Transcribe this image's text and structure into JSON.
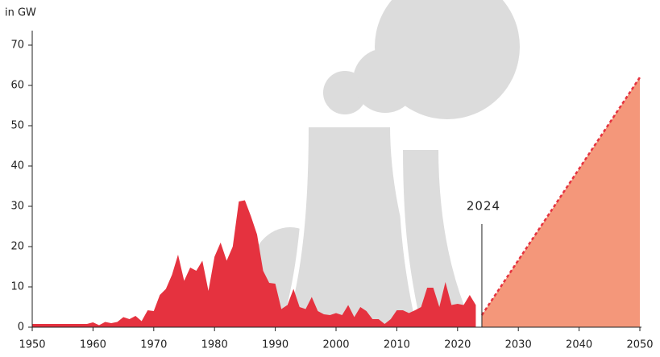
{
  "chart_data": {
    "type": "area",
    "y_label": "in GW",
    "annotation": 2024,
    "xlim": [
      1950,
      2050
    ],
    "xticks": [
      1950,
      1960,
      1970,
      1980,
      1990,
      2000,
      2010,
      2020,
      2030,
      2040,
      2050
    ],
    "ylim": [
      0,
      70
    ],
    "yticks": [
      0,
      10,
      20,
      30,
      40,
      50,
      60,
      70
    ],
    "series": [
      {
        "color": "#e5323f",
        "x": [
          1950,
          1951,
          1952,
          1953,
          1954,
          1955,
          1956,
          1957,
          1958,
          1959,
          1960,
          1961,
          1962,
          1963,
          1964,
          1965,
          1966,
          1967,
          1968,
          1969,
          1970,
          1971,
          1972,
          1973,
          1974,
          1975,
          1976,
          1977,
          1978,
          1979,
          1980,
          1981,
          1982,
          1983,
          1984,
          1985,
          1986,
          1987,
          1988,
          1989,
          1990,
          1991,
          1992,
          1993,
          1994,
          1995,
          1996,
          1997,
          1998,
          1999,
          2000,
          2001,
          2002,
          2003,
          2004,
          2005,
          2006,
          2007,
          2008,
          2009,
          2010,
          2011,
          2012,
          2013,
          2014,
          2015,
          2016,
          2017,
          2018,
          2019,
          2020,
          2021,
          2022,
          2023
        ],
        "values": [
          0.8,
          0.8,
          0.8,
          0.8,
          0.8,
          0.8,
          0.8,
          0.8,
          0.8,
          0.8,
          1.2,
          0.5,
          1.3,
          1,
          1.3,
          2.5,
          2,
          2.8,
          1.5,
          4.2,
          4,
          8,
          9.5,
          13,
          18,
          11.5,
          14.8,
          14,
          16.5,
          9,
          17.5,
          21,
          16.5,
          20,
          31.2,
          31.5,
          27.5,
          23,
          14,
          11,
          10.8,
          4.5,
          5.5,
          9.5,
          5,
          4.5,
          7.5,
          4,
          3.2,
          3,
          3.5,
          3,
          5.5,
          2.5,
          5,
          4,
          2,
          2,
          0.8,
          2,
          4.2,
          4.2,
          3.5,
          4.2,
          5,
          9.8,
          9.8,
          5,
          11.2,
          5.5,
          5.8,
          5.5,
          8,
          5.5
        ]
      },
      {
        "color": "#f4977a",
        "line_color": "#e5323f",
        "dashed": true,
        "x": [
          2024,
          2050
        ],
        "values": [
          3,
          62
        ]
      }
    ]
  }
}
